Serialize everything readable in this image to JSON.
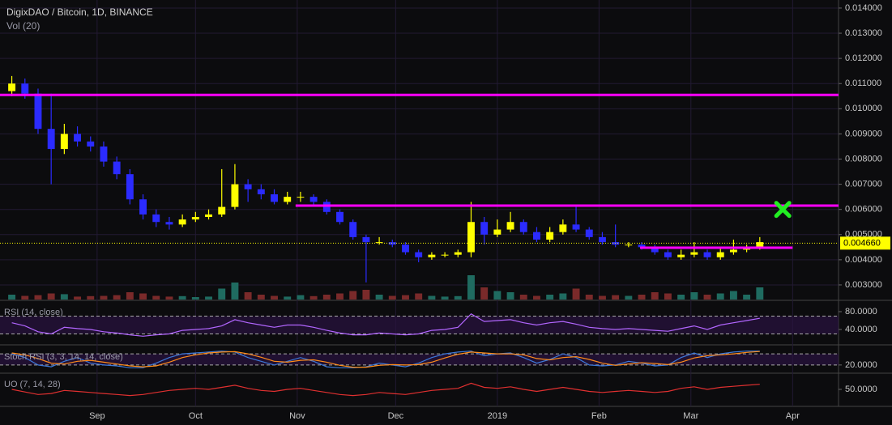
{
  "chart_data": [
    {
      "type": "candlestick",
      "title": "DigixDAO / Bitcoin, 1D, BINANCE",
      "x": [
        -26,
        -22,
        -18,
        -14,
        -10,
        -6,
        -2,
        2,
        6,
        10,
        14,
        18,
        22,
        26,
        30,
        34,
        38,
        42,
        46,
        50,
        54,
        58,
        62,
        66,
        70,
        74,
        78,
        82,
        86,
        90,
        94,
        98,
        102,
        106,
        110,
        114,
        118,
        122,
        126,
        130,
        134,
        138,
        142,
        146,
        150,
        154,
        158,
        162,
        166,
        170,
        174,
        178,
        182,
        186,
        190,
        194,
        198,
        202
      ],
      "xlim": [
        -29.6,
        226
      ],
      "xticks": [
        {
          "value": 0,
          "label": "Sep"
        },
        {
          "value": 30,
          "label": "Oct"
        },
        {
          "value": 61,
          "label": "Nov"
        },
        {
          "value": 91,
          "label": "Dec"
        },
        {
          "value": 122,
          "label": "2019"
        },
        {
          "value": 153,
          "label": "Feb"
        },
        {
          "value": 181,
          "label": "Mar"
        },
        {
          "value": 212,
          "label": "Apr"
        }
      ],
      "open": [
        0.0107,
        0.011,
        0.0106,
        0.0092,
        0.0084,
        0.009,
        0.0087,
        0.0085,
        0.0079,
        0.0074,
        0.0064,
        0.0058,
        0.0055,
        0.0054,
        0.0056,
        0.0057,
        0.0058,
        0.0061,
        0.007,
        0.0068,
        0.0066,
        0.0063,
        0.0065,
        0.0065,
        0.0063,
        0.0059,
        0.0055,
        0.0049,
        0.0047,
        0.0047,
        0.0046,
        0.0043,
        0.0041,
        0.0042,
        0.0042,
        0.0043,
        0.0055,
        0.005,
        0.0052,
        0.0055,
        0.0051,
        0.0048,
        0.0051,
        0.0054,
        0.0052,
        0.0049,
        0.0047,
        0.0046,
        0.0046,
        0.0045,
        0.0043,
        0.0041,
        0.0042,
        0.0043,
        0.0041,
        0.0043,
        0.0044,
        0.0045
      ],
      "high": [
        0.0113,
        0.0112,
        0.0108,
        0.0106,
        0.0094,
        0.0093,
        0.0089,
        0.0087,
        0.0081,
        0.0076,
        0.0066,
        0.006,
        0.0057,
        0.0058,
        0.0059,
        0.006,
        0.0076,
        0.0078,
        0.0072,
        0.007,
        0.0068,
        0.0067,
        0.0067,
        0.0066,
        0.0064,
        0.006,
        0.0056,
        0.005,
        0.0049,
        0.0048,
        0.0047,
        0.0044,
        0.0043,
        0.0043,
        0.0044,
        0.0063,
        0.0057,
        0.0056,
        0.0059,
        0.0056,
        0.0053,
        0.0053,
        0.0056,
        0.0061,
        0.0053,
        0.0051,
        0.0054,
        0.0047,
        0.0047,
        0.0046,
        0.0044,
        0.0044,
        0.0047,
        0.0044,
        0.0045,
        0.0048,
        0.0046,
        0.0049
      ],
      "low": [
        0.0105,
        0.0104,
        0.009,
        0.007,
        0.0082,
        0.0085,
        0.0083,
        0.0077,
        0.0072,
        0.0062,
        0.0056,
        0.0053,
        0.0052,
        0.0053,
        0.0055,
        0.0056,
        0.0057,
        0.006,
        0.0063,
        0.0064,
        0.0062,
        0.0062,
        0.0063,
        0.0062,
        0.0058,
        0.0054,
        0.0048,
        0.0031,
        0.0046,
        0.0045,
        0.0042,
        0.0039,
        0.004,
        0.0041,
        0.0041,
        0.0041,
        0.0046,
        0.0049,
        0.0051,
        0.005,
        0.0047,
        0.0047,
        0.005,
        0.0051,
        0.0048,
        0.0046,
        0.0045,
        0.0045,
        0.0044,
        0.0042,
        0.004,
        0.004,
        0.0041,
        0.004,
        0.004,
        0.0042,
        0.0043,
        0.0044
      ],
      "close": [
        0.011,
        0.0106,
        0.0092,
        0.0084,
        0.009,
        0.0087,
        0.0085,
        0.0079,
        0.0074,
        0.0064,
        0.0058,
        0.0055,
        0.0054,
        0.0056,
        0.0057,
        0.0058,
        0.0061,
        0.007,
        0.0068,
        0.0066,
        0.0063,
        0.0065,
        0.0065,
        0.0063,
        0.0059,
        0.0055,
        0.0049,
        0.0047,
        0.0047,
        0.0046,
        0.0043,
        0.0041,
        0.0042,
        0.0042,
        0.0043,
        0.0055,
        0.005,
        0.0052,
        0.0055,
        0.0051,
        0.0048,
        0.0051,
        0.0054,
        0.0052,
        0.0049,
        0.0047,
        0.0046,
        0.0046,
        0.0045,
        0.0043,
        0.0041,
        0.0042,
        0.0043,
        0.0041,
        0.0043,
        0.0044,
        0.0045,
        0.0047
      ],
      "up_color": "#ffff00",
      "down_color": "#2b2bff",
      "ylim": [
        0.00242,
        0.01432
      ],
      "yticks": [
        {
          "value": 0.003,
          "label": "0.003000"
        },
        {
          "value": 0.004,
          "label": "0.004000"
        },
        {
          "value": 0.005,
          "label": "0.005000"
        },
        {
          "value": 0.006,
          "label": "0.006000"
        },
        {
          "value": 0.007,
          "label": "0.007000"
        },
        {
          "value": 0.008,
          "label": "0.008000"
        },
        {
          "value": 0.009,
          "label": "0.009000"
        },
        {
          "value": 0.01,
          "label": "0.010000"
        },
        {
          "value": 0.011,
          "label": "0.011000"
        },
        {
          "value": 0.012,
          "label": "0.012000"
        },
        {
          "value": 0.013,
          "label": "0.013000"
        },
        {
          "value": 0.014,
          "label": "0.014000"
        }
      ],
      "last_price": {
        "value": 0.00466,
        "label": "0.004660"
      },
      "lines": [
        {
          "y": 0.01055,
          "x": [
            -29.6,
            226
          ],
          "color": "#ff00ff"
        },
        {
          "y": 0.00615,
          "x": [
            60.5,
            226
          ],
          "color": "#ff00ff"
        },
        {
          "y": 0.00448,
          "x": [
            165.5,
            212
          ],
          "color": "#ff00ff"
        }
      ],
      "markers": [
        {
          "x": 209,
          "y": 0.006,
          "color": "#22ee22"
        }
      ],
      "grid": true
    },
    {
      "type": "volume",
      "title": "Vol (20)",
      "values": [
        20,
        15,
        18,
        25,
        22,
        12,
        14,
        15,
        18,
        30,
        25,
        15,
        12,
        14,
        10,
        12,
        45,
        70,
        30,
        20,
        15,
        12,
        18,
        14,
        20,
        25,
        35,
        40,
        20,
        15,
        18,
        25,
        15,
        12,
        14,
        100,
        50,
        35,
        30,
        20,
        15,
        20,
        25,
        45,
        20,
        15,
        18,
        15,
        20,
        30,
        25,
        20,
        30,
        20,
        25,
        35,
        20,
        50
      ],
      "ylim": [
        0,
        100
      ],
      "up_color": "#1f6b60",
      "down_color": "#7a2a2a"
    },
    {
      "type": "line",
      "title": "RSI (14, close)",
      "lines": [
        {
          "color": "#b266ff",
          "values": [
            55,
            48,
            35,
            30,
            45,
            42,
            40,
            35,
            32,
            28,
            25,
            28,
            30,
            38,
            40,
            42,
            48,
            62,
            55,
            50,
            45,
            50,
            50,
            45,
            38,
            32,
            28,
            28,
            32,
            30,
            28,
            30,
            38,
            40,
            45,
            75,
            58,
            60,
            62,
            55,
            50,
            55,
            58,
            52,
            45,
            42,
            40,
            42,
            40,
            38,
            36,
            42,
            48,
            40,
            50,
            55,
            60,
            65
          ]
        }
      ],
      "ylim": [
        7.3,
        103.6
      ],
      "yticks": [
        {
          "value": 80,
          "label": "80.0000"
        },
        {
          "value": 40,
          "label": "40.0000"
        }
      ],
      "bands": [
        70,
        30
      ]
    },
    {
      "type": "line",
      "title": "Stoch RSI (3, 3, 14, 14, close)",
      "lines": [
        {
          "color": "#3c78d8",
          "values": [
            80,
            60,
            20,
            10,
            40,
            60,
            30,
            20,
            15,
            5,
            5,
            30,
            60,
            80,
            85,
            90,
            95,
            90,
            60,
            40,
            20,
            40,
            60,
            40,
            10,
            5,
            5,
            10,
            30,
            20,
            10,
            30,
            60,
            80,
            90,
            95,
            70,
            80,
            85,
            60,
            30,
            50,
            80,
            60,
            20,
            15,
            20,
            40,
            30,
            15,
            20,
            60,
            85,
            60,
            80,
            90,
            95,
            95
          ]
        },
        {
          "color": "#ff8c1a",
          "values": [
            85,
            75,
            55,
            30,
            25,
            40,
            45,
            35,
            25,
            15,
            10,
            15,
            35,
            60,
            75,
            85,
            90,
            92,
            80,
            62,
            40,
            35,
            45,
            48,
            35,
            18,
            8,
            8,
            18,
            22,
            20,
            22,
            35,
            58,
            78,
            90,
            85,
            80,
            80,
            75,
            55,
            48,
            60,
            65,
            50,
            30,
            18,
            25,
            32,
            28,
            22,
            35,
            58,
            70,
            75,
            80,
            88,
            93
          ]
        }
      ],
      "ylim": [
        -20,
        120
      ],
      "yticks": [
        {
          "value": 20,
          "label": "20.0000"
        }
      ],
      "bands": [
        80,
        20
      ]
    },
    {
      "type": "line",
      "title": "UO (7, 14, 28)",
      "lines": [
        {
          "color": "#e03030",
          "values": [
            50,
            45,
            40,
            42,
            48,
            46,
            44,
            42,
            40,
            38,
            40,
            44,
            48,
            50,
            52,
            50,
            54,
            58,
            52,
            48,
            46,
            50,
            52,
            48,
            44,
            40,
            38,
            40,
            44,
            42,
            40,
            44,
            48,
            50,
            52,
            62,
            54,
            52,
            55,
            50,
            46,
            50,
            54,
            50,
            46,
            44,
            46,
            48,
            46,
            44,
            46,
            52,
            55,
            50,
            54,
            56,
            58,
            60
          ]
        }
      ],
      "ylim": [
        20,
        80
      ],
      "yticks": [
        {
          "value": 50,
          "label": "50.0000"
        }
      ]
    }
  ]
}
